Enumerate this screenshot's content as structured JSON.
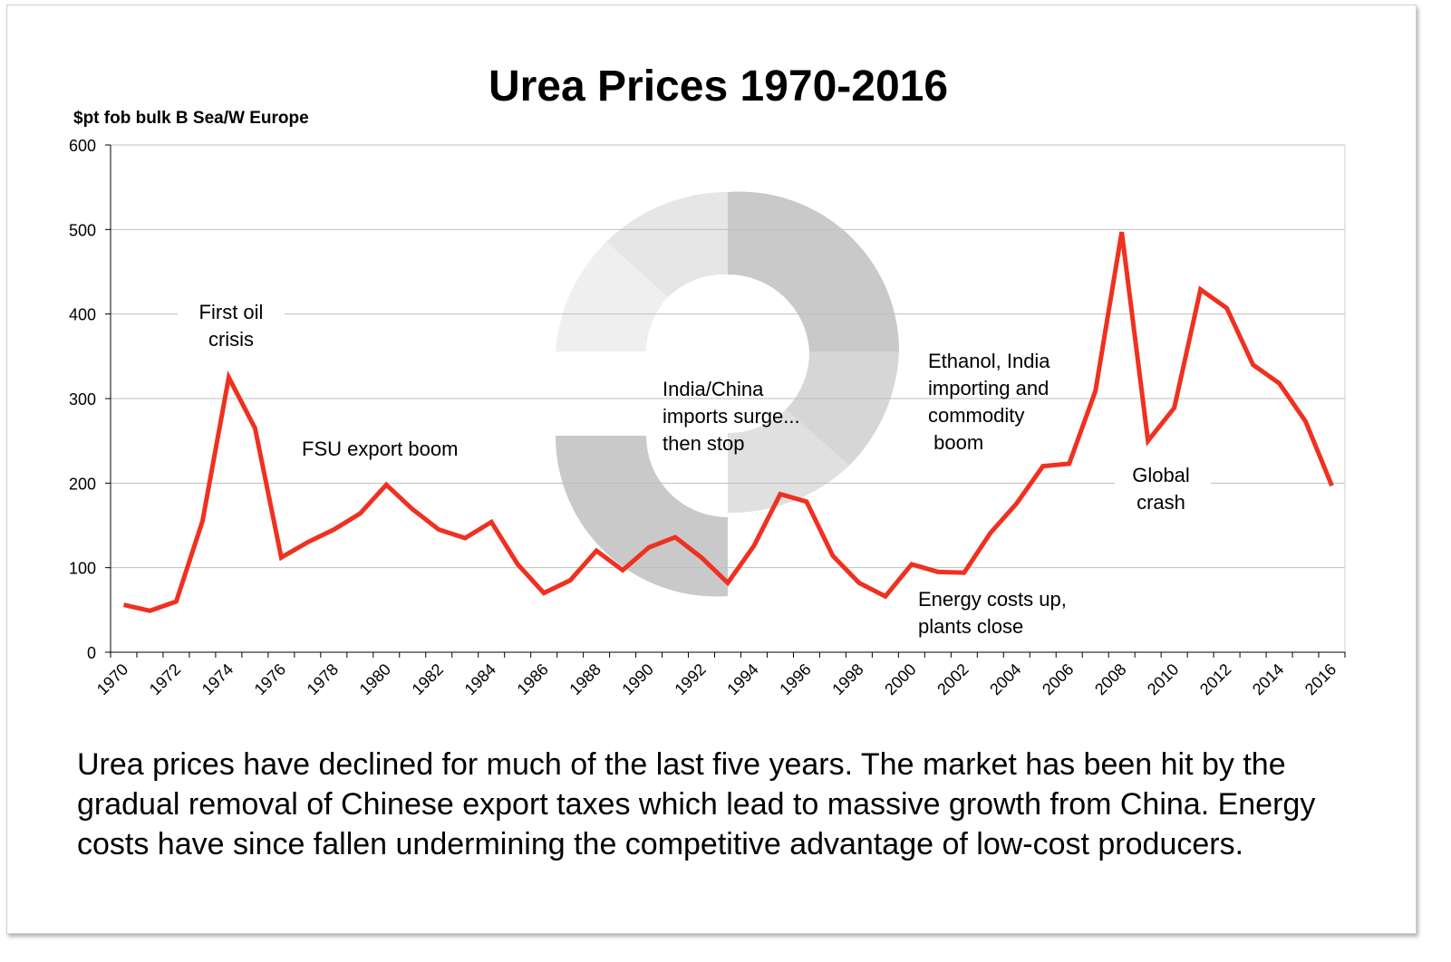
{
  "chart_data": {
    "type": "line",
    "title": "Urea Prices 1970-2016",
    "ylabel": "$pt fob bulk B Sea/W Europe",
    "xlabel": "",
    "ylim": [
      0,
      600
    ],
    "yticks": [
      0,
      100,
      200,
      300,
      400,
      500,
      600
    ],
    "grid": true,
    "line_color": "#f03020",
    "x": [
      1970,
      1971,
      1972,
      1973,
      1974,
      1975,
      1976,
      1977,
      1978,
      1979,
      1980,
      1981,
      1982,
      1983,
      1984,
      1985,
      1986,
      1987,
      1988,
      1989,
      1990,
      1991,
      1992,
      1993,
      1994,
      1995,
      1996,
      1997,
      1998,
      1999,
      2000,
      2001,
      2002,
      2003,
      2004,
      2005,
      2006,
      2007,
      2008,
      2009,
      2010,
      2011,
      2012,
      2013,
      2014,
      2015,
      2016
    ],
    "values": [
      56,
      49,
      60,
      155,
      325,
      265,
      112,
      130,
      145,
      164,
      198,
      169,
      145,
      135,
      154,
      104,
      70,
      85,
      120,
      97,
      124,
      136,
      112,
      82,
      126,
      187,
      178,
      114,
      82,
      66,
      104,
      95,
      94,
      141,
      176,
      220,
      223,
      309,
      497,
      250,
      289,
      429,
      407,
      340,
      318,
      273,
      197
    ],
    "xtick_labels": [
      "1970",
      "1972",
      "1974",
      "1976",
      "1978",
      "1980",
      "1982",
      "1984",
      "1986",
      "1988",
      "1990",
      "1992",
      "1994",
      "1996",
      "1998",
      "2000",
      "2002",
      "2004",
      "2006",
      "2008",
      "2010",
      "2012",
      "2014",
      "2016"
    ],
    "annotations": [
      {
        "lines": [
          "First oil",
          "crisis"
        ]
      },
      {
        "lines": [
          "FSU export boom"
        ]
      },
      {
        "lines": [
          "India/China",
          "imports surge...",
          "then stop"
        ]
      },
      {
        "lines": [
          "Ethanol, India",
          "importing and",
          "commodity",
          " boom"
        ]
      },
      {
        "lines": [
          "Energy costs up,",
          "plants close"
        ]
      },
      {
        "lines": [
          "Global",
          "crash"
        ]
      }
    ]
  },
  "caption": "Urea prices have declined for much of the last five years. The market has been hit by the gradual removal of Chinese export taxes which lead to massive growth from China. Energy costs have since fallen undermining the competitive advantage of low-cost producers."
}
